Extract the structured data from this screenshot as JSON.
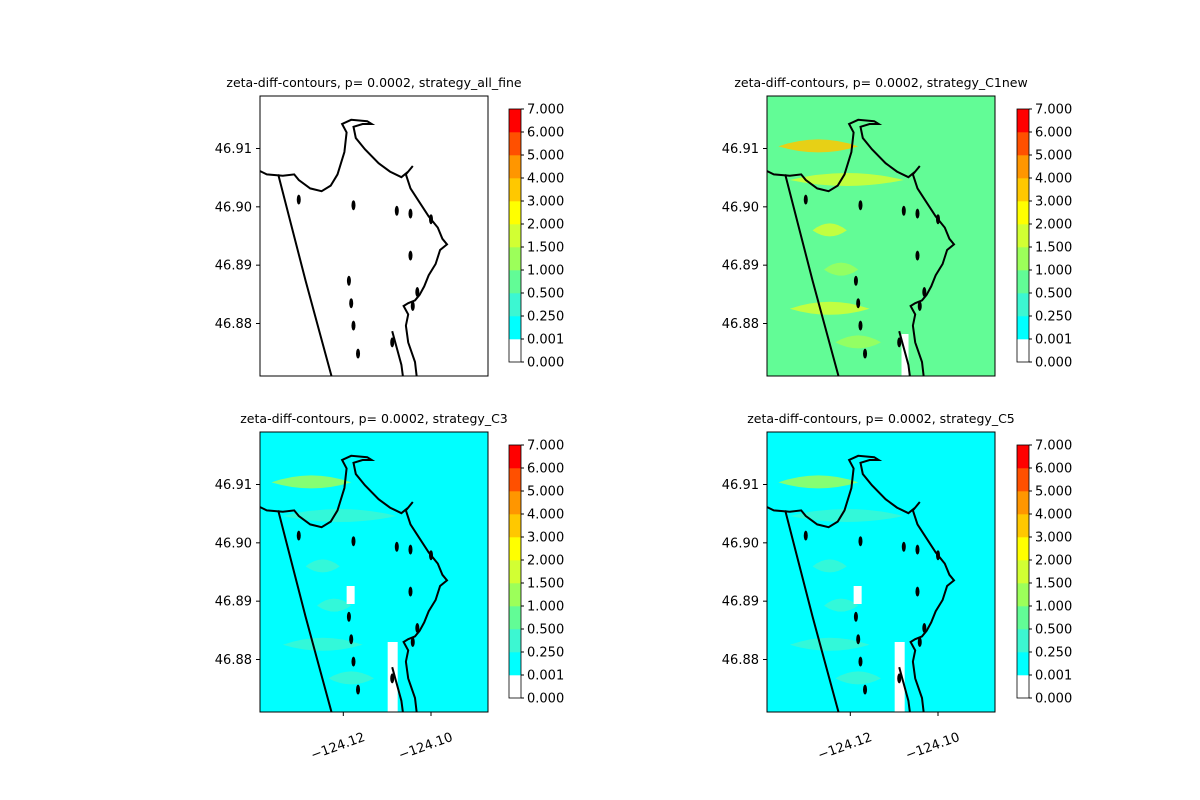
{
  "figure": {
    "layout": "2x2 grid of contour map panels, each with its own colorbar"
  },
  "colorbar": {
    "levels": [
      0.0,
      0.001,
      0.25,
      0.5,
      1.0,
      1.5,
      2.0,
      3.0,
      4.0,
      5.0,
      6.0,
      7.0
    ],
    "tick_labels": [
      "0.000",
      "0.001",
      "0.250",
      "0.500",
      "1.000",
      "1.500",
      "2.000",
      "3.000",
      "4.000",
      "5.000",
      "6.000",
      "7.000"
    ],
    "colors": [
      "#ffffff",
      "#00ffff",
      "#3cf7d2",
      "#62fc96",
      "#9cff5a",
      "#d2ff33",
      "#ffff00",
      "#ffc800",
      "#ff9600",
      "#ff5000",
      "#ff0000"
    ]
  },
  "chart_data": [
    {
      "type": "heatmap",
      "title": "zeta-diff-contours, p= 0.0002, strategy_all_fine",
      "base_color": "#ffffff",
      "xlabel": "",
      "ylabel": "",
      "ytick_labels": [
        "46.91",
        "46.90",
        "46.89",
        "46.88"
      ],
      "yticks": [
        46.91,
        46.9,
        46.89,
        46.88
      ],
      "xtick_labels": [],
      "xlim": [
        -124.139,
        -124.087
      ],
      "ylim": [
        46.871,
        46.919
      ],
      "grid": false
    },
    {
      "type": "heatmap",
      "title": "zeta-diff-contours, p= 0.0002, strategy_C1new",
      "base_color": "#62fc96",
      "xlabel": "",
      "ylabel": "",
      "ytick_labels": [
        "46.91",
        "46.90",
        "46.89",
        "46.88"
      ],
      "yticks": [
        46.91,
        46.9,
        46.89,
        46.88
      ],
      "xtick_labels": [],
      "xlim": [
        -124.139,
        -124.087
      ],
      "ylim": [
        46.871,
        46.919
      ],
      "grid": false
    },
    {
      "type": "heatmap",
      "title": "zeta-diff-contours, p= 0.0002, strategy_C3",
      "base_color": "#00ffff",
      "xlabel": "",
      "ylabel": "",
      "ytick_labels": [
        "46.91",
        "46.90",
        "46.89",
        "46.88"
      ],
      "yticks": [
        46.91,
        46.9,
        46.89,
        46.88
      ],
      "xtick_labels": [
        "−124.12",
        "−124.10"
      ],
      "xticks": [
        -124.12,
        -124.1
      ],
      "xlim": [
        -124.139,
        -124.087
      ],
      "ylim": [
        46.871,
        46.919
      ],
      "grid": false
    },
    {
      "type": "heatmap",
      "title": "zeta-diff-contours, p= 0.0002, strategy_C5",
      "base_color": "#00ffff",
      "xlabel": "",
      "ylabel": "",
      "ytick_labels": [
        "46.91",
        "46.90",
        "46.89",
        "46.88"
      ],
      "yticks": [
        46.91,
        46.9,
        46.89,
        46.88
      ],
      "xtick_labels": [
        "−124.12",
        "−124.10"
      ],
      "xticks": [
        -124.12,
        -124.1
      ],
      "xlim": [
        -124.139,
        -124.087
      ],
      "ylim": [
        46.871,
        46.919
      ],
      "grid": false
    }
  ]
}
